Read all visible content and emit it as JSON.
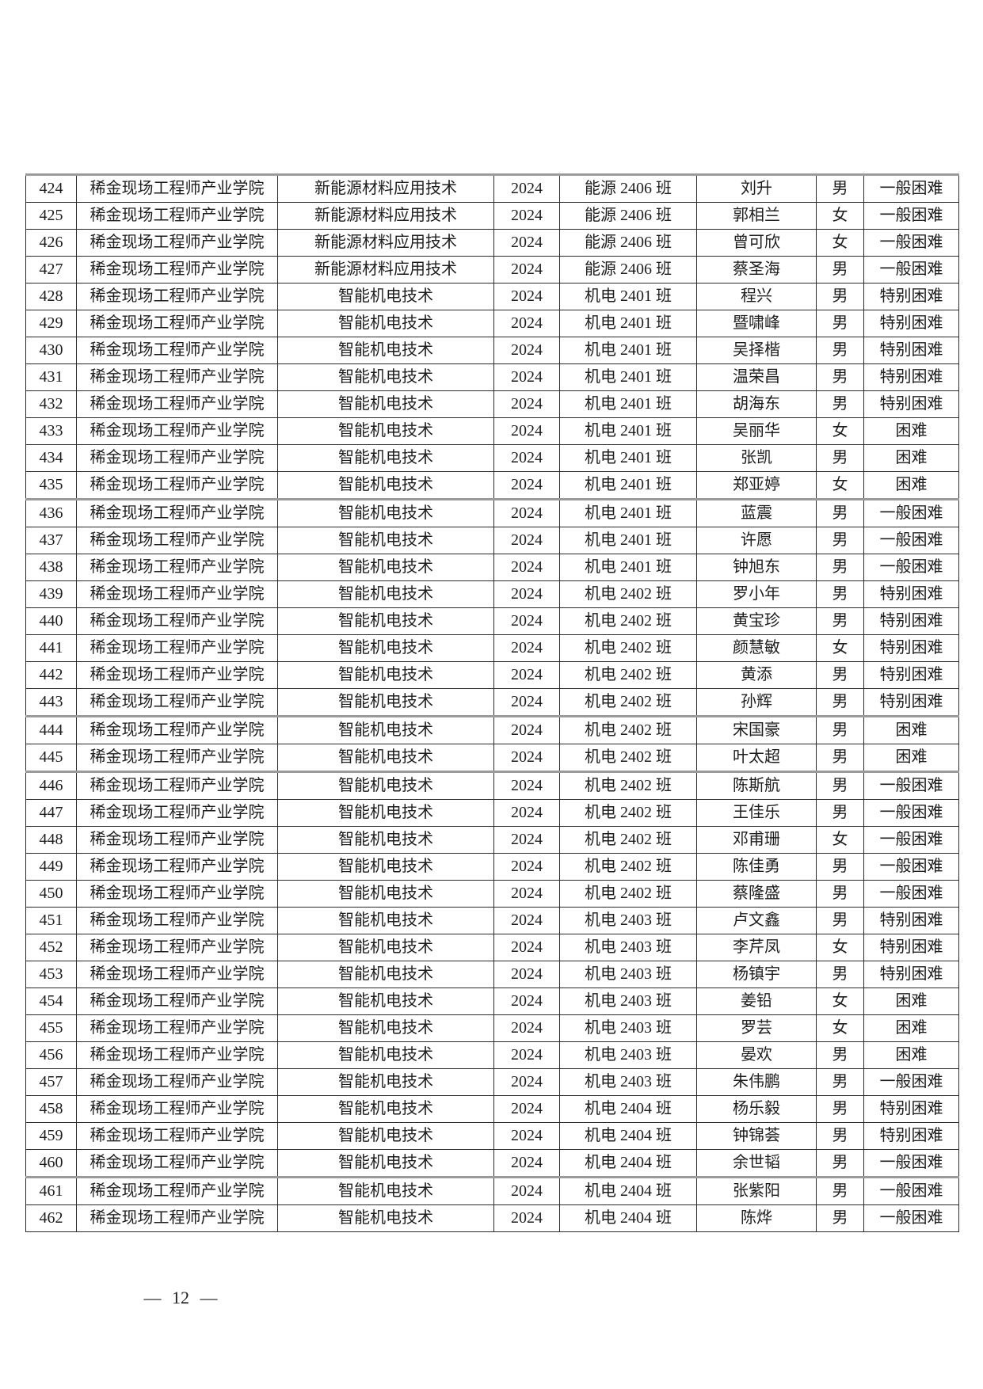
{
  "page": {
    "number_label": "— 12 —"
  },
  "colors": {
    "text": "#1d1d1d",
    "grid_line": "#2a2a2a",
    "thick_line": "#9b9b9b",
    "background": "#ffffff"
  },
  "table": {
    "column_keys": [
      "no",
      "college",
      "major",
      "year",
      "class",
      "name",
      "gender",
      "level"
    ],
    "rows": [
      {
        "no": "424",
        "college": "稀金现场工程师产业学院",
        "major": "新能源材料应用技术",
        "year": "2024",
        "class": "能源 2406 班",
        "name": "刘升",
        "gender": "男",
        "level": "一般困难"
      },
      {
        "no": "425",
        "college": "稀金现场工程师产业学院",
        "major": "新能源材料应用技术",
        "year": "2024",
        "class": "能源 2406 班",
        "name": "郭相兰",
        "gender": "女",
        "level": "一般困难"
      },
      {
        "no": "426",
        "college": "稀金现场工程师产业学院",
        "major": "新能源材料应用技术",
        "year": "2024",
        "class": "能源 2406 班",
        "name": "曾可欣",
        "gender": "女",
        "level": "一般困难"
      },
      {
        "no": "427",
        "college": "稀金现场工程师产业学院",
        "major": "新能源材料应用技术",
        "year": "2024",
        "class": "能源 2406 班",
        "name": "蔡圣海",
        "gender": "男",
        "level": "一般困难"
      },
      {
        "no": "428",
        "college": "稀金现场工程师产业学院",
        "major": "智能机电技术",
        "year": "2024",
        "class": "机电 2401 班",
        "name": "程兴",
        "gender": "男",
        "level": "特别困难"
      },
      {
        "no": "429",
        "college": "稀金现场工程师产业学院",
        "major": "智能机电技术",
        "year": "2024",
        "class": "机电 2401 班",
        "name": "暨啸峰",
        "gender": "男",
        "level": "特别困难"
      },
      {
        "no": "430",
        "college": "稀金现场工程师产业学院",
        "major": "智能机电技术",
        "year": "2024",
        "class": "机电 2401 班",
        "name": "吴择楷",
        "gender": "男",
        "level": "特别困难"
      },
      {
        "no": "431",
        "college": "稀金现场工程师产业学院",
        "major": "智能机电技术",
        "year": "2024",
        "class": "机电 2401 班",
        "name": "温荣昌",
        "gender": "男",
        "level": "特别困难"
      },
      {
        "no": "432",
        "college": "稀金现场工程师产业学院",
        "major": "智能机电技术",
        "year": "2024",
        "class": "机电 2401 班",
        "name": "胡海东",
        "gender": "男",
        "level": "特别困难"
      },
      {
        "no": "433",
        "college": "稀金现场工程师产业学院",
        "major": "智能机电技术",
        "year": "2024",
        "class": "机电 2401 班",
        "name": "吴丽华",
        "gender": "女",
        "level": "困难"
      },
      {
        "no": "434",
        "college": "稀金现场工程师产业学院",
        "major": "智能机电技术",
        "year": "2024",
        "class": "机电 2401 班",
        "name": "张凯",
        "gender": "男",
        "level": "困难"
      },
      {
        "no": "435",
        "college": "稀金现场工程师产业学院",
        "major": "智能机电技术",
        "year": "2024",
        "class": "机电 2401 班",
        "name": "郑亚婷",
        "gender": "女",
        "level": "困难"
      },
      {
        "no": "436",
        "college": "稀金现场工程师产业学院",
        "major": "智能机电技术",
        "year": "2024",
        "class": "机电 2401 班",
        "name": "蓝震",
        "gender": "男",
        "level": "一般困难"
      },
      {
        "no": "437",
        "college": "稀金现场工程师产业学院",
        "major": "智能机电技术",
        "year": "2024",
        "class": "机电 2401 班",
        "name": "许愿",
        "gender": "男",
        "level": "一般困难"
      },
      {
        "no": "438",
        "college": "稀金现场工程师产业学院",
        "major": "智能机电技术",
        "year": "2024",
        "class": "机电 2401 班",
        "name": "钟旭东",
        "gender": "男",
        "level": "一般困难"
      },
      {
        "no": "439",
        "college": "稀金现场工程师产业学院",
        "major": "智能机电技术",
        "year": "2024",
        "class": "机电 2402 班",
        "name": "罗小年",
        "gender": "男",
        "level": "特别困难"
      },
      {
        "no": "440",
        "college": "稀金现场工程师产业学院",
        "major": "智能机电技术",
        "year": "2024",
        "class": "机电 2402 班",
        "name": "黄宝珍",
        "gender": "男",
        "level": "特别困难"
      },
      {
        "no": "441",
        "college": "稀金现场工程师产业学院",
        "major": "智能机电技术",
        "year": "2024",
        "class": "机电 2402 班",
        "name": "颜慧敏",
        "gender": "女",
        "level": "特别困难"
      },
      {
        "no": "442",
        "college": "稀金现场工程师产业学院",
        "major": "智能机电技术",
        "year": "2024",
        "class": "机电 2402 班",
        "name": "黄添",
        "gender": "男",
        "level": "特别困难"
      },
      {
        "no": "443",
        "college": "稀金现场工程师产业学院",
        "major": "智能机电技术",
        "year": "2024",
        "class": "机电 2402 班",
        "name": "孙辉",
        "gender": "男",
        "level": "特别困难"
      },
      {
        "no": "444",
        "college": "稀金现场工程师产业学院",
        "major": "智能机电技术",
        "year": "2024",
        "class": "机电 2402 班",
        "name": "宋国豪",
        "gender": "男",
        "level": "困难"
      },
      {
        "no": "445",
        "college": "稀金现场工程师产业学院",
        "major": "智能机电技术",
        "year": "2024",
        "class": "机电 2402 班",
        "name": "叶太超",
        "gender": "男",
        "level": "困难"
      },
      {
        "no": "446",
        "college": "稀金现场工程师产业学院",
        "major": "智能机电技术",
        "year": "2024",
        "class": "机电 2402 班",
        "name": "陈斯航",
        "gender": "男",
        "level": "一般困难"
      },
      {
        "no": "447",
        "college": "稀金现场工程师产业学院",
        "major": "智能机电技术",
        "year": "2024",
        "class": "机电 2402 班",
        "name": "王佳乐",
        "gender": "男",
        "level": "一般困难"
      },
      {
        "no": "448",
        "college": "稀金现场工程师产业学院",
        "major": "智能机电技术",
        "year": "2024",
        "class": "机电 2402 班",
        "name": "邓甫珊",
        "gender": "女",
        "level": "一般困难"
      },
      {
        "no": "449",
        "college": "稀金现场工程师产业学院",
        "major": "智能机电技术",
        "year": "2024",
        "class": "机电 2402 班",
        "name": "陈佳勇",
        "gender": "男",
        "level": "一般困难"
      },
      {
        "no": "450",
        "college": "稀金现场工程师产业学院",
        "major": "智能机电技术",
        "year": "2024",
        "class": "机电 2402 班",
        "name": "蔡隆盛",
        "gender": "男",
        "level": "一般困难"
      },
      {
        "no": "451",
        "college": "稀金现场工程师产业学院",
        "major": "智能机电技术",
        "year": "2024",
        "class": "机电 2403 班",
        "name": "卢文鑫",
        "gender": "男",
        "level": "特别困难"
      },
      {
        "no": "452",
        "college": "稀金现场工程师产业学院",
        "major": "智能机电技术",
        "year": "2024",
        "class": "机电 2403 班",
        "name": "李芹凤",
        "gender": "女",
        "level": "特别困难"
      },
      {
        "no": "453",
        "college": "稀金现场工程师产业学院",
        "major": "智能机电技术",
        "year": "2024",
        "class": "机电 2403 班",
        "name": "杨镇宇",
        "gender": "男",
        "level": "特别困难"
      },
      {
        "no": "454",
        "college": "稀金现场工程师产业学院",
        "major": "智能机电技术",
        "year": "2024",
        "class": "机电 2403 班",
        "name": "姜铅",
        "gender": "女",
        "level": "困难"
      },
      {
        "no": "455",
        "college": "稀金现场工程师产业学院",
        "major": "智能机电技术",
        "year": "2024",
        "class": "机电 2403 班",
        "name": "罗芸",
        "gender": "女",
        "level": "困难"
      },
      {
        "no": "456",
        "college": "稀金现场工程师产业学院",
        "major": "智能机电技术",
        "year": "2024",
        "class": "机电 2403 班",
        "name": "晏欢",
        "gender": "男",
        "level": "困难"
      },
      {
        "no": "457",
        "college": "稀金现场工程师产业学院",
        "major": "智能机电技术",
        "year": "2024",
        "class": "机电 2403 班",
        "name": "朱伟鹏",
        "gender": "男",
        "level": "一般困难"
      },
      {
        "no": "458",
        "college": "稀金现场工程师产业学院",
        "major": "智能机电技术",
        "year": "2024",
        "class": "机电 2404 班",
        "name": "杨乐毅",
        "gender": "男",
        "level": "特别困难"
      },
      {
        "no": "459",
        "college": "稀金现场工程师产业学院",
        "major": "智能机电技术",
        "year": "2024",
        "class": "机电 2404 班",
        "name": "钟锦荟",
        "gender": "男",
        "level": "特别困难"
      },
      {
        "no": "460",
        "college": "稀金现场工程师产业学院",
        "major": "智能机电技术",
        "year": "2024",
        "class": "机电 2404 班",
        "name": "余世韬",
        "gender": "男",
        "level": "一般困难"
      },
      {
        "no": "461",
        "college": "稀金现场工程师产业学院",
        "major": "智能机电技术",
        "year": "2024",
        "class": "机电 2404 班",
        "name": "张紫阳",
        "gender": "男",
        "level": "一般困难"
      },
      {
        "no": "462",
        "college": "稀金现场工程师产业学院",
        "major": "智能机电技术",
        "year": "2024",
        "class": "机电 2404 班",
        "name": "陈烨",
        "gender": "男",
        "level": "一般困难"
      }
    ]
  }
}
